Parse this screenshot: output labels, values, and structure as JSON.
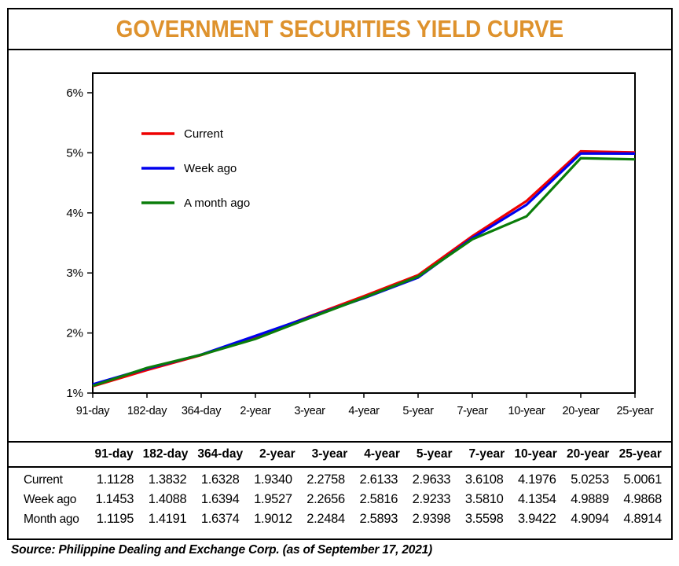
{
  "page": {
    "title": "GOVERNMENT SECURITIES YIELD CURVE",
    "source_note": "Source: Philippine Dealing and Exchange Corp. (as of September 17, 2021)"
  },
  "colors": {
    "title": "#DE922D",
    "frame": "#000000",
    "text": "#000000",
    "current": "#EE0000",
    "week_ago": "#0000EE",
    "month_ago": "#0A7D0A"
  },
  "chart_data": {
    "type": "line",
    "title": "GOVERNMENT SECURITIES YIELD CURVE",
    "categories": [
      "91-day",
      "182-day",
      "364-day",
      "2-year",
      "3-year",
      "4-year",
      "5-year",
      "7-year",
      "10-year",
      "20-year",
      "25-year"
    ],
    "y_tick_labels": [
      "1%",
      "2%",
      "3%",
      "4%",
      "5%",
      "6%"
    ],
    "ylim": [
      1,
      6.35
    ],
    "xlabel": "",
    "ylabel": "",
    "grid": false,
    "legend_position": "upper left inside",
    "value_decimals": 4,
    "series": [
      {
        "name": "Current",
        "table_label": "Current",
        "color_key": "current",
        "values": [
          1.1128,
          1.3832,
          1.6328,
          1.934,
          2.2758,
          2.6133,
          2.9633,
          3.6108,
          4.1976,
          5.0253,
          5.0061
        ]
      },
      {
        "name": "Week ago",
        "table_label": "Week ago",
        "color_key": "week_ago",
        "values": [
          1.1453,
          1.4088,
          1.6394,
          1.9527,
          2.2656,
          2.5816,
          2.9233,
          3.581,
          4.1354,
          4.9889,
          4.9868
        ]
      },
      {
        "name": "A month ago",
        "table_label": "Month ago",
        "color_key": "month_ago",
        "values": [
          1.1195,
          1.4191,
          1.6374,
          1.9012,
          2.2484,
          2.5893,
          2.9398,
          3.5598,
          3.9422,
          4.9094,
          4.8914
        ]
      }
    ]
  }
}
